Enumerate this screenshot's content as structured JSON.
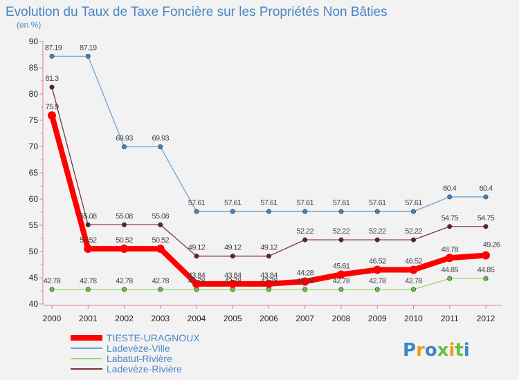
{
  "chart_data": {
    "type": "line",
    "title": "Evolution du Taux de Taxe Foncière sur les Propriétés Non Bâties",
    "subtitle": "(en %)",
    "categories": [
      "2000",
      "2001",
      "2002",
      "2003",
      "2004",
      "2005",
      "2006",
      "2007",
      "2008",
      "2009",
      "2010",
      "2011",
      "2012"
    ],
    "ylim": [
      40,
      90
    ],
    "yticks": [
      40,
      45,
      50,
      55,
      60,
      65,
      70,
      75,
      80,
      85,
      90
    ],
    "grid": false,
    "legend_position": "bottom-left",
    "series": [
      {
        "name": "TIESTE-URAGNOUX",
        "color": "#ff0000",
        "marker_color": "#ff0000",
        "values": [
          75.9,
          50.52,
          50.52,
          50.52,
          43.84,
          43.84,
          43.84,
          44.28,
          45.61,
          46.52,
          46.52,
          48.78,
          49.26
        ],
        "labels": [
          "75.9",
          "50.52",
          "50.52",
          "50.52",
          "43.84",
          "43.84",
          "43.84",
          "44.28",
          "45.61",
          "46.52",
          "46.52",
          "48.78",
          "49.26"
        ]
      },
      {
        "name": "Ladevèze-Ville",
        "color": "#6fa0d0",
        "marker_color": "#3d85c6",
        "values": [
          87.19,
          87.19,
          69.93,
          69.93,
          57.61,
          57.61,
          57.61,
          57.61,
          57.61,
          57.61,
          57.61,
          60.4,
          60.4
        ],
        "labels": [
          "87.19",
          "87.19",
          "69.93",
          "69.93",
          "57.61",
          "57.61",
          "57.61",
          "57.61",
          "57.61",
          "57.61",
          "57.61",
          "60.4",
          "60.4"
        ]
      },
      {
        "name": "Labatut-Rivière",
        "color": "#9bd66a",
        "marker_color": "#6abf40",
        "values": [
          42.78,
          42.78,
          42.78,
          42.78,
          42.78,
          42.78,
          42.78,
          42.78,
          42.78,
          42.78,
          42.78,
          44.85,
          44.85
        ],
        "labels": [
          "42.78",
          "42.78",
          "42.78",
          "42.78",
          "42.78",
          "42.78",
          "42.78",
          "42.78",
          "42.78",
          "42.78",
          "42.78",
          "44.85",
          "44.85"
        ]
      },
      {
        "name": "Ladevèze-Rivière",
        "color": "#7a3535",
        "marker_color": "#6b1f1f",
        "values": [
          81.3,
          55.08,
          55.08,
          55.08,
          49.12,
          49.12,
          49.12,
          52.22,
          52.22,
          52.22,
          52.22,
          54.75,
          54.75
        ],
        "labels": [
          "81.3",
          "55.08",
          "55.08",
          "55.08",
          "49.12",
          "49.12",
          "49.12",
          "52.22",
          "52.22",
          "52.22",
          "52.22",
          "54.75",
          "54.75"
        ]
      }
    ]
  },
  "logo": {
    "letters": [
      "P",
      "r",
      "o",
      "x",
      "i",
      "t",
      "i"
    ],
    "colors": [
      "#3d85c6",
      "#f39c12",
      "#3d85c6",
      "#6abf40",
      "#f39c12",
      "#6abf40",
      "#3d85c6"
    ]
  }
}
